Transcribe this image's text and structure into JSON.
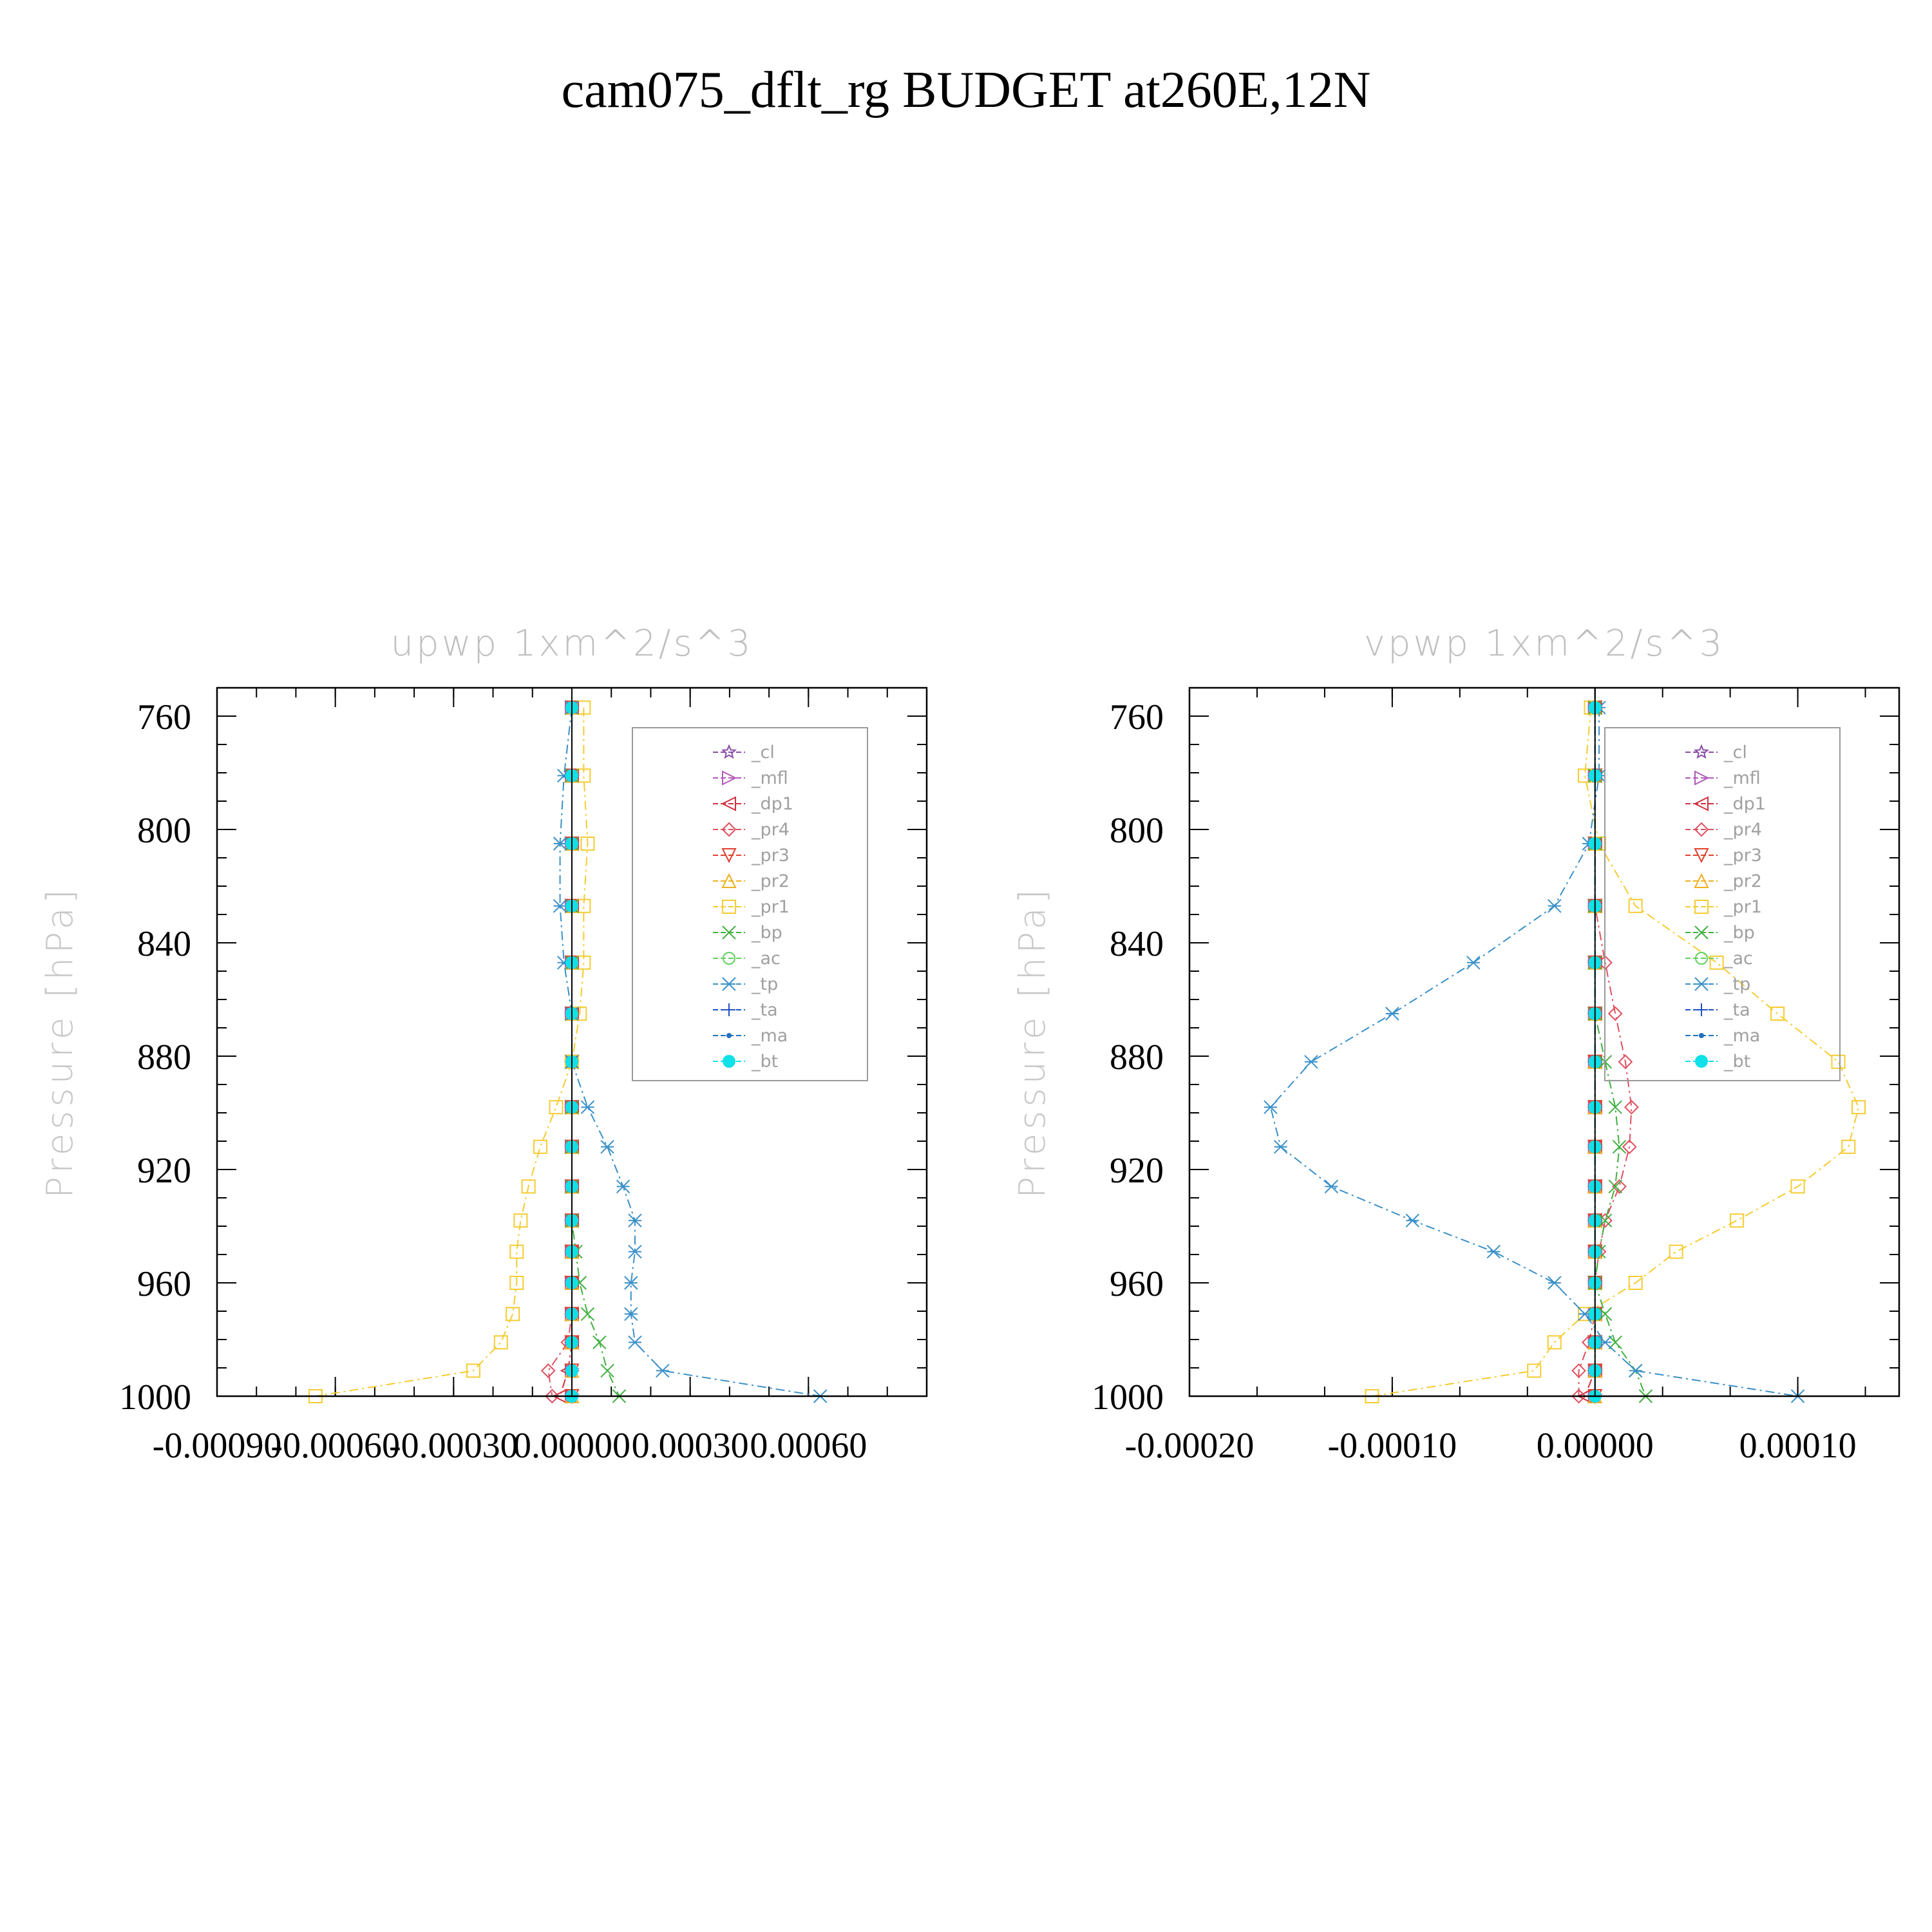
{
  "title": "cam075_dflt_rg  BUDGET at260E,12N",
  "chart_data": [
    {
      "type": "line",
      "title": "upwp    1xm^2/s^3",
      "ylabel": "Pressure  [hPa]",
      "xlabel": "",
      "xlim": [
        -0.0009,
        0.0009
      ],
      "ylim": [
        1000,
        750
      ],
      "xticks": [
        "-0.00090",
        "-0.00060",
        "-0.00030",
        "0.00000",
        "0.00030",
        "0.00060"
      ],
      "yticks": [
        "760",
        "800",
        "840",
        "880",
        "920",
        "960",
        "1000"
      ],
      "y": [
        757,
        781,
        805,
        827,
        847,
        865,
        882,
        898,
        912,
        926,
        938,
        949,
        960,
        971,
        981,
        991,
        1000
      ],
      "series": [
        {
          "name": "_cl",
          "color": "#8a4ea8",
          "marker": "star",
          "values": [
            0,
            0,
            0,
            0,
            0,
            0,
            0,
            0,
            0,
            0,
            0,
            0,
            0,
            0,
            0,
            0,
            0
          ]
        },
        {
          "name": "_mfl",
          "color": "#b05ab8",
          "marker": "triR",
          "values": [
            0,
            0,
            0,
            0,
            0,
            0,
            0,
            0,
            0,
            0,
            0,
            0,
            0,
            0,
            0,
            0,
            0
          ]
        },
        {
          "name": "_dp1",
          "color": "#d03040",
          "marker": "triL",
          "values": [
            0,
            0,
            0,
            0,
            0,
            0,
            0,
            0,
            0,
            0,
            0,
            0,
            0,
            0,
            0,
            -1e-05,
            -3e-05
          ]
        },
        {
          "name": "_pr4",
          "color": "#e05060",
          "marker": "diamond",
          "values": [
            0,
            0,
            0,
            0,
            0,
            0,
            0,
            0,
            0,
            0,
            0,
            0,
            0,
            0,
            -1e-05,
            -6e-05,
            -5e-05
          ]
        },
        {
          "name": "_pr3",
          "color": "#e04030",
          "marker": "triD",
          "values": [
            0,
            0,
            0,
            0,
            0,
            0,
            0,
            0,
            0,
            0,
            0,
            0,
            0,
            0,
            0,
            0,
            0
          ]
        },
        {
          "name": "_pr2",
          "color": "#f0b020",
          "marker": "triU",
          "values": [
            0,
            0,
            0,
            0,
            0,
            0,
            0,
            0,
            0,
            0,
            0,
            0,
            0,
            0,
            0,
            0,
            0
          ]
        },
        {
          "name": "_pr1",
          "color": "#f5cc30",
          "marker": "square",
          "values": [
            3e-05,
            3e-05,
            4e-05,
            3e-05,
            3e-05,
            2e-05,
            0,
            -4e-05,
            -8e-05,
            -0.00011,
            -0.00013,
            -0.00014,
            -0.00014,
            -0.00015,
            -0.00018,
            -0.00025,
            -0.00065
          ]
        },
        {
          "name": "_bp",
          "color": "#40b040",
          "marker": "x",
          "values": [
            0,
            0,
            0,
            0,
            0,
            0,
            0,
            0,
            0,
            0,
            0,
            1e-05,
            2e-05,
            4e-05,
            7e-05,
            9e-05,
            0.00012
          ]
        },
        {
          "name": "_ac",
          "color": "#60d060",
          "marker": "circle",
          "values": [
            0,
            0,
            0,
            0,
            0,
            0,
            0,
            0,
            0,
            0,
            0,
            0,
            0,
            0,
            0,
            0,
            0
          ]
        },
        {
          "name": "_tp",
          "color": "#3a90c8",
          "marker": "asterisk",
          "values": [
            0,
            -2e-05,
            -3e-05,
            -3e-05,
            -2e-05,
            0,
            0,
            4e-05,
            9e-05,
            0.00013,
            0.00016,
            0.00016,
            0.00015,
            0.00015,
            0.00016,
            0.00023,
            0.00063
          ]
        },
        {
          "name": "_ta",
          "color": "#2050c0",
          "marker": "plus",
          "values": [
            0,
            0,
            0,
            0,
            0,
            0,
            0,
            0,
            0,
            0,
            0,
            0,
            0,
            0,
            0,
            0,
            0
          ]
        },
        {
          "name": "_ma",
          "color": "#2070c0",
          "marker": "dot",
          "values": [
            0,
            0,
            0,
            0,
            0,
            0,
            0,
            0,
            0,
            0,
            0,
            0,
            0,
            0,
            0,
            0,
            0
          ]
        },
        {
          "name": "_bt",
          "color": "#10e0e8",
          "marker": "bigdot",
          "values": [
            0,
            0,
            0,
            0,
            0,
            0,
            0,
            0,
            0,
            0,
            0,
            0,
            0,
            0,
            0,
            0,
            0
          ]
        }
      ]
    },
    {
      "type": "line",
      "title": "vpwp    1xm^2/s^3",
      "ylabel": "Pressure  [hPa]",
      "xlabel": "",
      "xlim": [
        -0.0002,
        0.00015
      ],
      "ylim": [
        1000,
        750
      ],
      "xticks": [
        "-0.00020",
        "-0.00010",
        "0.00000",
        "0.00010"
      ],
      "yticks": [
        "760",
        "800",
        "840",
        "880",
        "920",
        "960",
        "1000"
      ],
      "y": [
        757,
        781,
        805,
        827,
        847,
        865,
        882,
        898,
        912,
        926,
        938,
        949,
        960,
        971,
        981,
        991,
        1000
      ],
      "series": [
        {
          "name": "_cl",
          "color": "#8a4ea8",
          "marker": "star",
          "values": [
            0,
            0,
            0,
            0,
            0,
            0,
            0,
            0,
            0,
            0,
            0,
            0,
            0,
            0,
            0,
            0,
            0
          ]
        },
        {
          "name": "_mfl",
          "color": "#b05ab8",
          "marker": "triR",
          "values": [
            0,
            0,
            0,
            0,
            0,
            0,
            0,
            0,
            0,
            0,
            0,
            0,
            0,
            0,
            0,
            0,
            0
          ]
        },
        {
          "name": "_dp1",
          "color": "#d03040",
          "marker": "triL",
          "values": [
            0,
            0,
            0,
            0,
            0,
            0,
            0,
            0,
            0,
            0,
            0,
            0,
            0,
            0,
            0,
            0,
            -5e-06
          ]
        },
        {
          "name": "_pr4",
          "color": "#e05060",
          "marker": "diamond",
          "values": [
            0,
            0,
            0,
            0,
            5e-06,
            1e-05,
            1.5e-05,
            1.8e-05,
            1.7e-05,
            1.2e-05,
            5e-06,
            2e-06,
            0,
            0,
            -3e-06,
            -8e-06,
            -8e-06
          ]
        },
        {
          "name": "_pr3",
          "color": "#e04030",
          "marker": "triD",
          "values": [
            0,
            0,
            0,
            0,
            0,
            0,
            0,
            0,
            0,
            0,
            0,
            0,
            0,
            0,
            0,
            0,
            0
          ]
        },
        {
          "name": "_pr2",
          "color": "#f0b020",
          "marker": "triU",
          "values": [
            0,
            0,
            0,
            0,
            0,
            0,
            0,
            0,
            0,
            0,
            0,
            0,
            0,
            0,
            0,
            0,
            0
          ]
        },
        {
          "name": "_pr1",
          "color": "#f5cc30",
          "marker": "square",
          "values": [
            -2e-06,
            -5e-06,
            2e-06,
            2e-05,
            6e-05,
            9e-05,
            0.00012,
            0.00013,
            0.000125,
            0.0001,
            7e-05,
            4e-05,
            2e-05,
            -5e-06,
            -2e-05,
            -3e-05,
            -0.00011
          ]
        },
        {
          "name": "_bp",
          "color": "#40b040",
          "marker": "x",
          "values": [
            0,
            0,
            0,
            0,
            0,
            0,
            5e-06,
            1e-05,
            1.2e-05,
            1e-05,
            5e-06,
            2e-06,
            0,
            5e-06,
            1e-05,
            2e-05,
            2.5e-05
          ]
        },
        {
          "name": "_ac",
          "color": "#60d060",
          "marker": "circle",
          "values": [
            0,
            0,
            0,
            0,
            0,
            0,
            0,
            0,
            0,
            0,
            0,
            0,
            0,
            0,
            0,
            0,
            0
          ]
        },
        {
          "name": "_tp",
          "color": "#3a90c8",
          "marker": "asterisk",
          "values": [
            2e-06,
            2e-06,
            -3e-06,
            -2e-05,
            -6e-05,
            -0.0001,
            -0.00014,
            -0.00016,
            -0.000155,
            -0.00013,
            -9e-05,
            -5e-05,
            -2e-05,
            -5e-06,
            5e-06,
            2e-05,
            0.0001
          ]
        },
        {
          "name": "_ta",
          "color": "#2050c0",
          "marker": "plus",
          "values": [
            0,
            0,
            0,
            0,
            0,
            0,
            0,
            0,
            0,
            0,
            0,
            0,
            0,
            0,
            0,
            0,
            0
          ]
        },
        {
          "name": "_ma",
          "color": "#2070c0",
          "marker": "dot",
          "values": [
            0,
            0,
            0,
            0,
            0,
            0,
            0,
            0,
            0,
            0,
            0,
            0,
            0,
            0,
            0,
            0,
            0
          ]
        },
        {
          "name": "_bt",
          "color": "#10e0e8",
          "marker": "bigdot",
          "values": [
            0,
            0,
            0,
            0,
            0,
            0,
            0,
            0,
            0,
            0,
            0,
            0,
            0,
            0,
            0,
            0,
            0
          ]
        }
      ]
    }
  ]
}
